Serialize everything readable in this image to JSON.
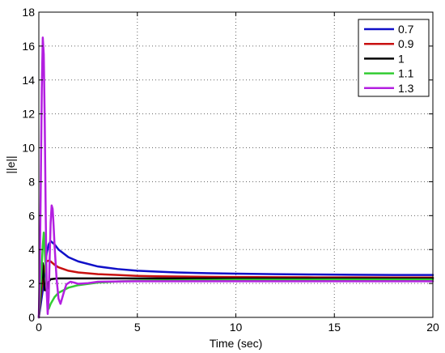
{
  "chart_data": {
    "type": "line",
    "title": "",
    "xlabel": "Time (sec)",
    "ylabel": "||e||",
    "xlim": [
      0,
      20
    ],
    "ylim": [
      0,
      18
    ],
    "xticks": [
      0,
      5,
      10,
      15,
      20
    ],
    "yticks": [
      0,
      2,
      4,
      6,
      8,
      10,
      12,
      14,
      16,
      18
    ],
    "xtick_labels": [
      "0",
      "5",
      "10",
      "15",
      "20"
    ],
    "ytick_labels": [
      "0",
      "2",
      "4",
      "6",
      "8",
      "10",
      "12",
      "14",
      "16",
      "18"
    ],
    "grid": true,
    "legend_position": "top-right",
    "series": [
      {
        "name": "0.7",
        "color": "#1010c8",
        "x": [
          0,
          0.1,
          0.2,
          0.3,
          0.4,
          0.5,
          0.6,
          0.8,
          1.0,
          1.5,
          2,
          3,
          4,
          5,
          6,
          7,
          8,
          10,
          12,
          14,
          16,
          18,
          20
        ],
        "y": [
          0,
          0.8,
          1.6,
          2.8,
          3.8,
          4.3,
          4.5,
          4.3,
          4.0,
          3.55,
          3.3,
          3.0,
          2.85,
          2.75,
          2.7,
          2.65,
          2.62,
          2.58,
          2.55,
          2.53,
          2.51,
          2.5,
          2.5
        ]
      },
      {
        "name": "0.9",
        "color": "#c81010",
        "x": [
          0,
          0.1,
          0.2,
          0.3,
          0.4,
          0.5,
          0.6,
          0.8,
          1.0,
          1.5,
          2,
          3,
          4,
          5,
          6,
          8,
          10,
          12,
          14,
          16,
          18,
          20
        ],
        "y": [
          0,
          1.2,
          2.3,
          3.0,
          3.3,
          3.35,
          3.3,
          3.1,
          2.95,
          2.75,
          2.65,
          2.55,
          2.5,
          2.45,
          2.42,
          2.4,
          2.38,
          2.37,
          2.36,
          2.36,
          2.35,
          2.35
        ]
      },
      {
        "name": "1",
        "color": "#000000",
        "x": [
          0,
          0.1,
          0.2,
          0.3,
          0.4,
          0.5,
          0.6,
          0.8,
          1.0,
          2,
          3,
          5,
          10,
          15,
          20
        ],
        "y": [
          0,
          1.5,
          3.2,
          1.6,
          1.6,
          2.1,
          2.25,
          2.28,
          2.3,
          2.3,
          2.3,
          2.3,
          2.3,
          2.3,
          2.3
        ]
      },
      {
        "name": "1.1",
        "color": "#33cc33",
        "x": [
          0,
          0.1,
          0.2,
          0.25,
          0.3,
          0.4,
          0.5,
          0.6,
          0.8,
          1.0,
          1.5,
          2,
          3,
          4,
          5,
          6,
          8,
          10,
          15,
          20
        ],
        "y": [
          0,
          2.0,
          4.2,
          5.0,
          4.0,
          1.6,
          0.5,
          0.8,
          1.2,
          1.45,
          1.75,
          1.9,
          2.05,
          2.12,
          2.16,
          2.18,
          2.2,
          2.22,
          2.23,
          2.23
        ]
      },
      {
        "name": "1.3",
        "color": "#b31fe0",
        "x": [
          0,
          0.05,
          0.1,
          0.15,
          0.2,
          0.25,
          0.3,
          0.35,
          0.4,
          0.45,
          0.5,
          0.55,
          0.6,
          0.65,
          0.7,
          0.75,
          0.8,
          0.9,
          1.0,
          1.1,
          1.2,
          1.3,
          1.4,
          1.6,
          1.8,
          2,
          2.5,
          3,
          4,
          5,
          6,
          8,
          10,
          15,
          20
        ],
        "y": [
          0,
          3.0,
          8.0,
          13.5,
          16.5,
          15.5,
          11.5,
          6.0,
          1.5,
          0.2,
          1.2,
          3.5,
          5.6,
          6.6,
          6.4,
          5.4,
          4.2,
          2.3,
          1.1,
          0.8,
          1.2,
          1.6,
          1.95,
          2.1,
          2.05,
          1.98,
          2.02,
          2.1,
          2.12,
          2.13,
          2.13,
          2.13,
          2.13,
          2.13,
          2.13
        ]
      }
    ]
  }
}
